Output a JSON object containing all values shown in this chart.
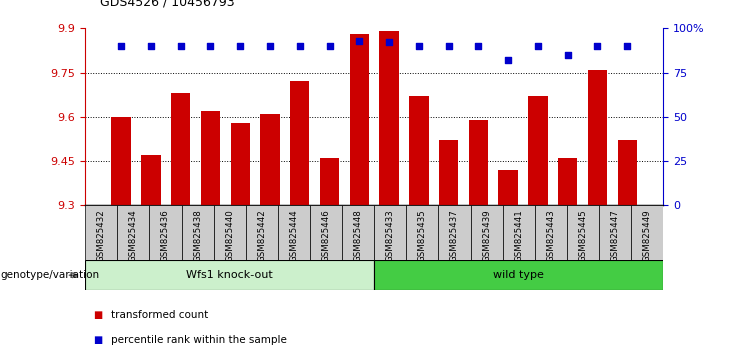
{
  "title": "GDS4526 / 10456793",
  "samples": [
    "GSM825432",
    "GSM825434",
    "GSM825436",
    "GSM825438",
    "GSM825440",
    "GSM825442",
    "GSM825444",
    "GSM825446",
    "GSM825448",
    "GSM825433",
    "GSM825435",
    "GSM825437",
    "GSM825439",
    "GSM825441",
    "GSM825443",
    "GSM825445",
    "GSM825447",
    "GSM825449"
  ],
  "red_values": [
    9.6,
    9.47,
    9.68,
    9.62,
    9.58,
    9.61,
    9.72,
    9.46,
    9.88,
    9.89,
    9.67,
    9.52,
    9.59,
    9.42,
    9.67,
    9.46,
    9.76,
    9.52
  ],
  "blue_values": [
    90,
    90,
    90,
    90,
    90,
    90,
    90,
    90,
    93,
    92,
    90,
    90,
    90,
    82,
    90,
    85,
    90,
    90
  ],
  "group1_label": "Wfs1 knock-out",
  "group2_label": "wild type",
  "group1_count": 9,
  "group2_count": 9,
  "genotype_label": "genotype/variation",
  "legend_red": "transformed count",
  "legend_blue": "percentile rank within the sample",
  "ylim_left": [
    9.3,
    9.9
  ],
  "ylim_right": [
    0,
    100
  ],
  "yticks_left": [
    9.3,
    9.45,
    9.6,
    9.75,
    9.9
  ],
  "yticks_right": [
    0,
    25,
    50,
    75,
    100
  ],
  "ytick_labels_right": [
    "0",
    "25",
    "50",
    "75",
    "100%"
  ],
  "grid_lines": [
    9.45,
    9.6,
    9.75
  ],
  "bar_color": "#cc0000",
  "dot_color": "#0000cc",
  "group1_color": "#ccf0cc",
  "group2_color": "#44cc44",
  "xtick_box_color": "#cccccc",
  "bg_color": "#ffffff",
  "tick_label_color_left": "#cc0000",
  "tick_label_color_right": "#0000cc"
}
